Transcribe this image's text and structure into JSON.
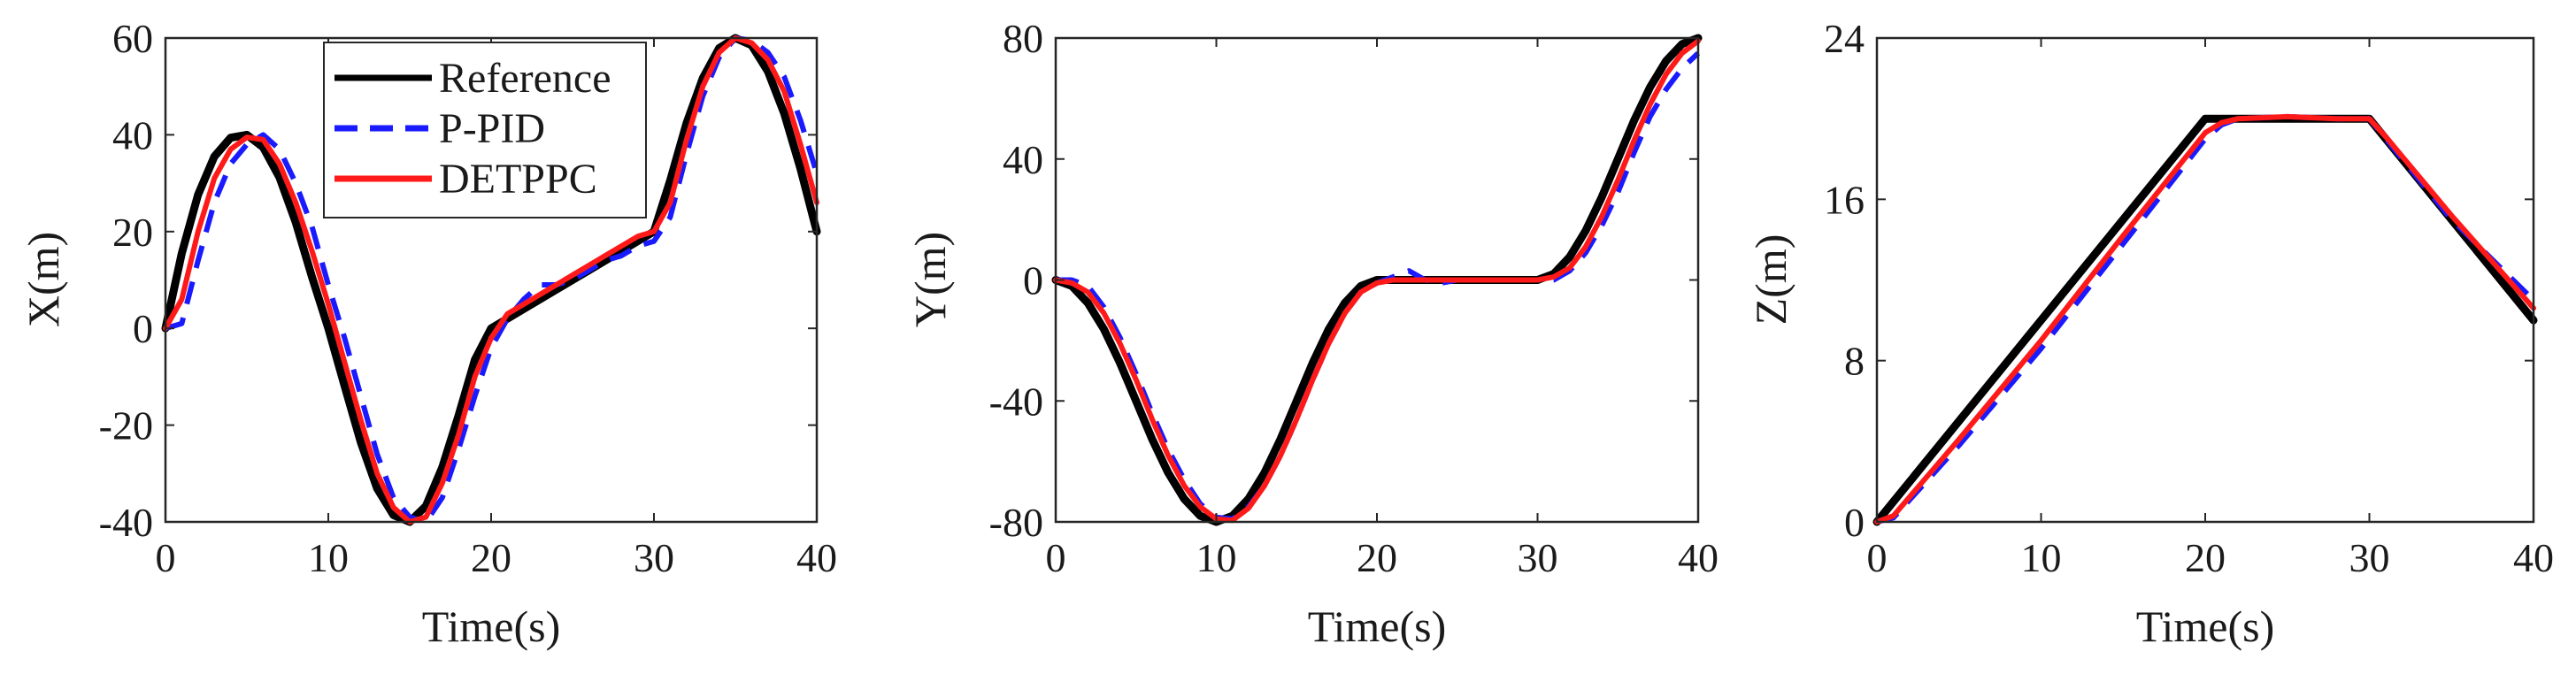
{
  "chart_data": [
    {
      "type": "line",
      "xlabel": "Time(s)",
      "ylabel": "X(m)",
      "xlim": [
        0,
        40
      ],
      "ylim": [
        -40,
        60
      ],
      "xticks": [
        0,
        10,
        20,
        30,
        40
      ],
      "yticks": [
        -40,
        -20,
        0,
        20,
        40,
        60
      ],
      "grid": false,
      "legend": {
        "placement": "top-center",
        "entries": [
          {
            "name": "Reference",
            "color": "#000000",
            "dash": "solid"
          },
          {
            "name": "P-PID",
            "color": "#1a1aff",
            "dash": "dashed"
          },
          {
            "name": "DETPPC",
            "color": "#ff1a1a",
            "dash": "solid"
          }
        ]
      },
      "series": [
        {
          "name": "Reference",
          "color": "#000000",
          "dash": "solid",
          "x": [
            0,
            1,
            2,
            3,
            4,
            5,
            6,
            7,
            8,
            9,
            10,
            11,
            12,
            13,
            14,
            15,
            16,
            17,
            18,
            19,
            20,
            21,
            22,
            23,
            24,
            25,
            26,
            27,
            28,
            29,
            30,
            31,
            32,
            33,
            34,
            35,
            36,
            37,
            38,
            39,
            40
          ],
          "y": [
            0,
            15.5,
            27.6,
            35.5,
            39.4,
            40,
            37.4,
            31.2,
            21.9,
            10.6,
            0,
            -11.9,
            -23.6,
            -33.1,
            -38.6,
            -40,
            -36.7,
            -28.7,
            -18,
            -6.5,
            0,
            2,
            4,
            6,
            8,
            10,
            12,
            14,
            16,
            18,
            20,
            30.6,
            42.4,
            51.7,
            57.9,
            60,
            58.5,
            53.1,
            44.4,
            33,
            20
          ]
        },
        {
          "name": "P-PID",
          "color": "#1a1aff",
          "dash": "dashed",
          "x": [
            0,
            1,
            2,
            3,
            4,
            5,
            6,
            7,
            8,
            9,
            10,
            11,
            12,
            13,
            14,
            15,
            16,
            17,
            18,
            19,
            20,
            21,
            22,
            23,
            24,
            25,
            26,
            27,
            28,
            29,
            30,
            31,
            32,
            33,
            34,
            35,
            36,
            37,
            38,
            39,
            40
          ],
          "y": [
            0,
            1,
            14,
            26,
            34,
            38,
            40,
            37,
            30,
            21,
            9,
            -2,
            -14,
            -26,
            -35,
            -39,
            -40,
            -35,
            -25,
            -14,
            -4,
            2,
            6,
            9,
            9,
            10,
            12,
            14,
            15,
            17,
            18,
            23,
            36,
            48,
            56,
            60,
            59.5,
            57,
            52,
            43,
            32
          ]
        },
        {
          "name": "DETPPC",
          "color": "#ff1a1a",
          "dash": "solid",
          "x": [
            0,
            1,
            2,
            3,
            4,
            5,
            6,
            7,
            8,
            9,
            10,
            11,
            12,
            13,
            14,
            15,
            16,
            17,
            18,
            19,
            20,
            21,
            22,
            23,
            24,
            25,
            26,
            27,
            28,
            29,
            30,
            31,
            32,
            33,
            34,
            35,
            36,
            37,
            38,
            39,
            40
          ],
          "y": [
            0,
            6,
            20,
            31,
            37,
            39.5,
            39,
            34,
            26,
            16,
            5,
            -7,
            -19,
            -30,
            -37,
            -40,
            -39,
            -32,
            -22,
            -10,
            -2,
            3,
            5,
            7,
            9,
            11,
            13,
            15,
            17,
            19,
            20,
            26,
            39,
            50,
            57,
            60,
            59,
            55.5,
            49,
            38,
            26
          ]
        }
      ]
    },
    {
      "type": "line",
      "xlabel": "Time(s)",
      "ylabel": "Y(m)",
      "xlim": [
        0,
        40
      ],
      "ylim": [
        -80,
        80
      ],
      "xticks": [
        0,
        10,
        20,
        30,
        40
      ],
      "yticks": [
        -80,
        -40,
        0,
        40,
        80
      ],
      "grid": false,
      "series": [
        {
          "name": "Reference",
          "color": "#000000",
          "dash": "solid",
          "x": [
            0,
            1,
            2,
            3,
            4,
            5,
            6,
            7,
            8,
            9,
            10,
            11,
            12,
            13,
            14,
            15,
            16,
            17,
            18,
            19,
            20,
            21,
            22,
            23,
            24,
            25,
            26,
            27,
            28,
            29,
            30,
            31,
            32,
            33,
            34,
            35,
            36,
            37,
            38,
            39,
            40
          ],
          "y": [
            0,
            -2,
            -7.6,
            -16.3,
            -27.4,
            -40,
            -52.6,
            -63.7,
            -72.4,
            -78,
            -80,
            -78,
            -72.4,
            -63.7,
            -52.6,
            -40,
            -27.4,
            -16.3,
            -7.6,
            -2,
            0,
            0,
            0,
            0,
            0,
            0,
            0,
            0,
            0,
            0,
            0,
            2,
            7.6,
            16.3,
            27.4,
            40,
            52.6,
            63.7,
            72.4,
            78,
            80
          ]
        },
        {
          "name": "P-PID",
          "color": "#1a1aff",
          "dash": "dashed",
          "x": [
            0,
            1,
            2,
            3,
            4,
            5,
            6,
            7,
            8,
            9,
            10,
            11,
            12,
            13,
            14,
            15,
            16,
            17,
            18,
            19,
            20,
            21,
            22,
            23,
            24,
            25,
            26,
            27,
            28,
            29,
            30,
            31,
            32,
            33,
            34,
            35,
            36,
            37,
            38,
            39,
            40
          ],
          "y": [
            0,
            0,
            -2,
            -9,
            -19,
            -31,
            -44,
            -56,
            -66,
            -74,
            -78.5,
            -79,
            -75,
            -68,
            -58,
            -46,
            -33,
            -21,
            -11,
            -4,
            -1,
            1,
            3,
            0,
            -1,
            0,
            0,
            0,
            0,
            0,
            0,
            0,
            3,
            9,
            18,
            29,
            42,
            54,
            63,
            70,
            75
          ]
        },
        {
          "name": "DETPPC",
          "color": "#ff1a1a",
          "dash": "solid",
          "x": [
            0,
            1,
            2,
            3,
            4,
            5,
            6,
            7,
            8,
            9,
            10,
            11,
            12,
            13,
            14,
            15,
            16,
            17,
            18,
            19,
            20,
            21,
            22,
            23,
            24,
            25,
            26,
            27,
            28,
            29,
            30,
            31,
            32,
            33,
            34,
            35,
            36,
            37,
            38,
            39,
            40
          ],
          "y": [
            0,
            -1,
            -4,
            -11,
            -21,
            -33,
            -46,
            -58,
            -68,
            -75,
            -79,
            -79.5,
            -75.5,
            -68,
            -58,
            -46,
            -33,
            -21,
            -11,
            -4,
            -1,
            0,
            0,
            0,
            0,
            0,
            0,
            0,
            0,
            0,
            0,
            1,
            4,
            11,
            21,
            33,
            46,
            58,
            68,
            75,
            79
          ]
        }
      ]
    },
    {
      "type": "line",
      "xlabel": "Time(s)",
      "ylabel": "Z(m)",
      "xlim": [
        0,
        40
      ],
      "ylim": [
        0,
        24
      ],
      "xticks": [
        0,
        10,
        20,
        30,
        40
      ],
      "yticks": [
        0,
        8,
        16,
        24
      ],
      "grid": false,
      "series": [
        {
          "name": "Reference",
          "color": "#000000",
          "dash": "solid",
          "x": [
            0,
            20,
            30,
            40
          ],
          "y": [
            0,
            20,
            20,
            10
          ]
        },
        {
          "name": "P-PID",
          "color": "#1a1aff",
          "dash": "dashed",
          "x": [
            0,
            1,
            5,
            10,
            15,
            20,
            21,
            22,
            25,
            28,
            30,
            31,
            35,
            40
          ],
          "y": [
            0,
            0.2,
            3.8,
            8.6,
            13.8,
            19,
            19.7,
            20,
            20.1,
            20,
            20,
            19,
            15,
            11
          ]
        },
        {
          "name": "DETPPC",
          "color": "#ff1a1a",
          "dash": "solid",
          "x": [
            0,
            1,
            5,
            10,
            15,
            20,
            21,
            22,
            25,
            28,
            30,
            31,
            35,
            40
          ],
          "y": [
            0,
            0.3,
            4.1,
            9,
            14.2,
            19.3,
            19.8,
            20,
            20.1,
            20,
            20,
            19.1,
            15.2,
            10.6
          ]
        }
      ]
    }
  ]
}
